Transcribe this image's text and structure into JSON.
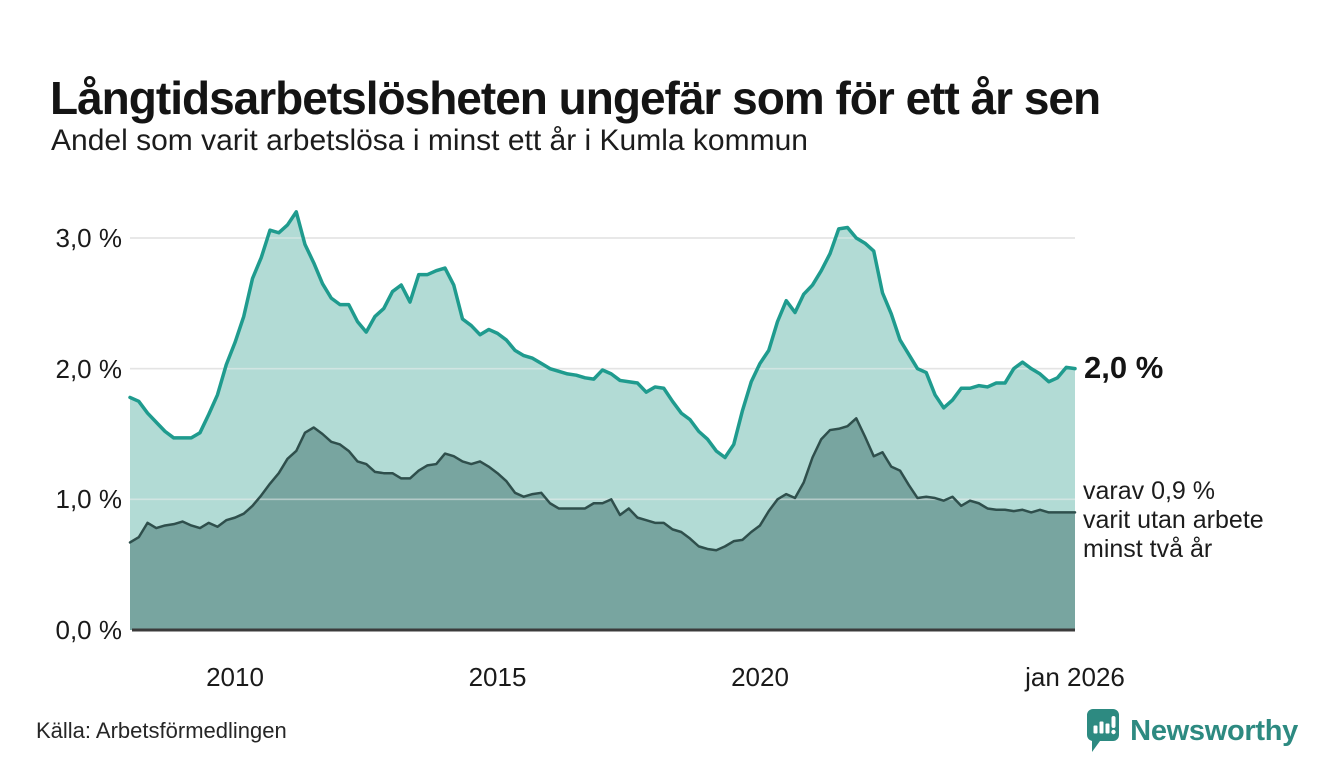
{
  "footer": {
    "source": "Källa: Arbetsförmedlingen",
    "brand": "Newsworthy",
    "brand_icon": "newsworthy-badge-icon",
    "brand_color": "#2d8a81"
  },
  "chart_data": {
    "type": "area",
    "title": "Långtidsarbetslösheten ungefär som för ett år sen",
    "subtitle": "Andel som varit arbetslösa i minst ett år i Kumla kommun",
    "xlabel": "",
    "ylabel": "",
    "xlim": [
      2008,
      2026
    ],
    "ylim": [
      0,
      3.35
    ],
    "grid": "horizontal",
    "legend_position": "none",
    "x_start": 2008,
    "x_step_years": 0.166667,
    "x_ticks": [
      {
        "year": 2010,
        "label": "2010"
      },
      {
        "year": 2015,
        "label": "2015"
      },
      {
        "year": 2020,
        "label": "2020"
      },
      {
        "year": 2026,
        "label": "jan 2026"
      }
    ],
    "y_ticks": [
      {
        "value": 0,
        "label": "0,0 %"
      },
      {
        "value": 1,
        "label": "1,0 %"
      },
      {
        "value": 2,
        "label": "2,0 %"
      },
      {
        "value": 3,
        "label": "3,0 %"
      }
    ],
    "colors": {
      "gridline": "#d9d9d9",
      "baseline": "#3b3b3b"
    },
    "series": [
      {
        "name": "arbetslosa-minst-ett-ar",
        "line_color": "#1f9b8e",
        "fill_color": "#b2dbd5",
        "line_width": 3.5,
        "values": [
          1.78,
          1.75,
          1.66,
          1.59,
          1.52,
          1.47,
          1.47,
          1.47,
          1.51,
          1.65,
          1.8,
          2.03,
          2.2,
          2.4,
          2.69,
          2.85,
          3.06,
          3.04,
          3.1,
          3.2,
          2.95,
          2.81,
          2.65,
          2.54,
          2.49,
          2.49,
          2.36,
          2.28,
          2.4,
          2.46,
          2.59,
          2.64,
          2.51,
          2.72,
          2.72,
          2.75,
          2.77,
          2.64,
          2.38,
          2.33,
          2.26,
          2.3,
          2.27,
          2.22,
          2.14,
          2.1,
          2.08,
          2.04,
          2.0,
          1.98,
          1.96,
          1.95,
          1.93,
          1.92,
          1.99,
          1.96,
          1.91,
          1.9,
          1.89,
          1.82,
          1.86,
          1.85,
          1.75,
          1.66,
          1.61,
          1.52,
          1.46,
          1.37,
          1.32,
          1.42,
          1.68,
          1.9,
          2.04,
          2.14,
          2.36,
          2.52,
          2.43,
          2.57,
          2.64,
          2.75,
          2.88,
          3.07,
          3.08,
          3.0,
          2.96,
          2.9,
          2.58,
          2.42,
          2.22,
          2.11,
          2.0,
          1.97,
          1.8,
          1.7,
          1.76,
          1.85,
          1.85,
          1.87,
          1.86,
          1.89,
          1.89,
          2.0,
          2.05,
          2.0,
          1.96,
          1.9,
          1.93,
          2.01,
          2.0
        ]
      },
      {
        "name": "arbetslosa-minst-tva-ar",
        "line_color": "#2f4f4c",
        "fill_color": "#78a5a0",
        "line_width": 2.5,
        "values": [
          0.67,
          0.71,
          0.82,
          0.78,
          0.8,
          0.81,
          0.83,
          0.8,
          0.78,
          0.82,
          0.79,
          0.84,
          0.86,
          0.89,
          0.95,
          1.03,
          1.12,
          1.2,
          1.31,
          1.37,
          1.51,
          1.55,
          1.5,
          1.44,
          1.42,
          1.37,
          1.29,
          1.27,
          1.21,
          1.2,
          1.2,
          1.16,
          1.16,
          1.22,
          1.26,
          1.27,
          1.35,
          1.33,
          1.29,
          1.27,
          1.29,
          1.25,
          1.2,
          1.14,
          1.05,
          1.02,
          1.04,
          1.05,
          0.97,
          0.93,
          0.93,
          0.93,
          0.93,
          0.97,
          0.97,
          1.0,
          0.88,
          0.93,
          0.86,
          0.84,
          0.82,
          0.82,
          0.77,
          0.75,
          0.7,
          0.64,
          0.62,
          0.61,
          0.64,
          0.68,
          0.69,
          0.75,
          0.8,
          0.91,
          1.0,
          1.04,
          1.01,
          1.13,
          1.32,
          1.46,
          1.53,
          1.54,
          1.56,
          1.62,
          1.48,
          1.33,
          1.36,
          1.25,
          1.22,
          1.11,
          1.01,
          1.02,
          1.01,
          0.99,
          1.02,
          0.95,
          0.99,
          0.97,
          0.93,
          0.92,
          0.92,
          0.91,
          0.92,
          0.9,
          0.92,
          0.9,
          0.9,
          0.9,
          0.9
        ]
      }
    ],
    "annotations": {
      "end_label": "2,0 %",
      "subset_lines": [
        "varav 0,9 %",
        "varit utan arbete",
        "minst två år"
      ]
    }
  }
}
